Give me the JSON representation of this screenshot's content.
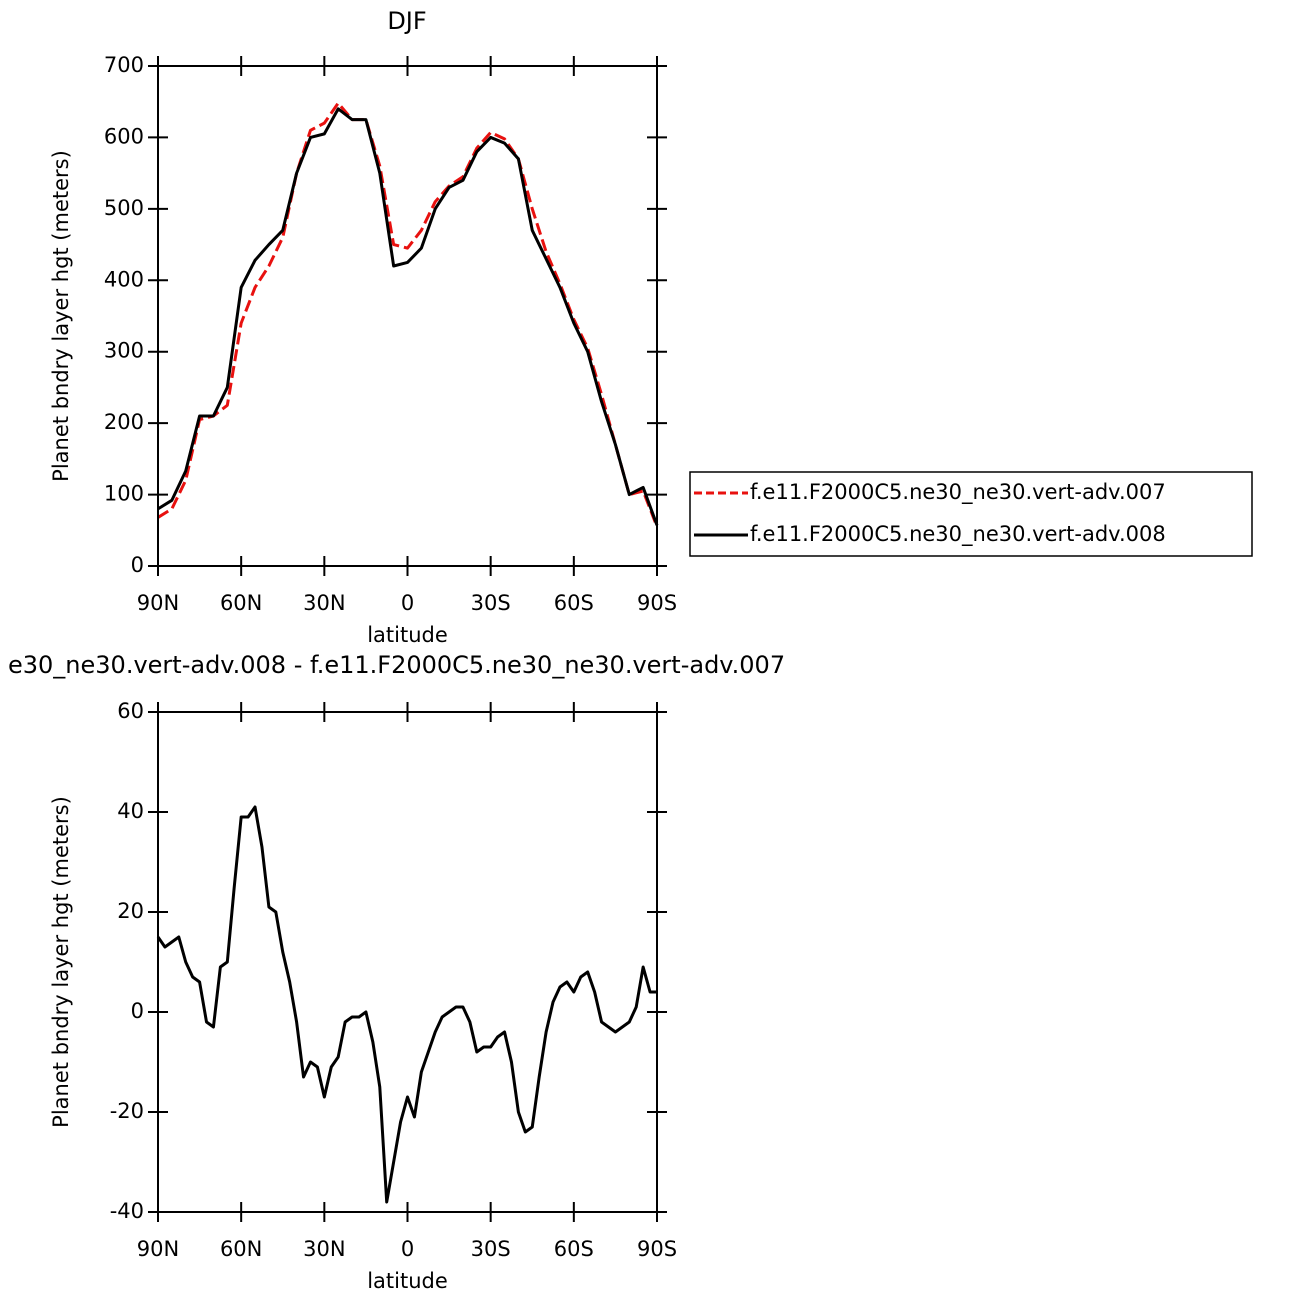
{
  "chart_data": [
    {
      "type": "line",
      "title": "DJF",
      "xlabel": "latitude",
      "ylabel": "Planet bndry layer hgt (meters)",
      "x": [
        90,
        85,
        80,
        75,
        70,
        65,
        60,
        55,
        50,
        45,
        40,
        35,
        30,
        25,
        20,
        15,
        10,
        5,
        0,
        -5,
        -10,
        -15,
        -20,
        -25,
        -30,
        -35,
        -40,
        -45,
        -50,
        -55,
        -60,
        -65,
        -70,
        -75,
        -80,
        -85,
        -90
      ],
      "series": [
        {
          "name": "f.e11.F2000C5.ne30_ne30.vert-adv.007",
          "color": "#e8110f",
          "style": "dashed",
          "values": [
            68,
            80,
            120,
            205,
            210,
            225,
            340,
            390,
            420,
            460,
            550,
            610,
            620,
            648,
            625,
            625,
            560,
            450,
            445,
            470,
            510,
            532,
            545,
            585,
            607,
            598,
            570,
            500,
            440,
            395,
            345,
            305,
            240,
            170,
            100,
            105,
            55
          ]
        },
        {
          "name": "f.e11.F2000C5.ne30_ne30.vert-adv.008",
          "color": "#000000",
          "style": "solid",
          "values": [
            80,
            92,
            133,
            210,
            210,
            250,
            390,
            428,
            450,
            470,
            550,
            600,
            605,
            640,
            625,
            625,
            550,
            420,
            425,
            445,
            500,
            530,
            540,
            580,
            600,
            592,
            570,
            470,
            430,
            390,
            340,
            300,
            230,
            170,
            100,
            110,
            57
          ]
        }
      ],
      "xlim": [
        90,
        -90
      ],
      "xticks": [
        {
          "value": 90,
          "label": "90N"
        },
        {
          "value": 60,
          "label": "60N"
        },
        {
          "value": 30,
          "label": "30N"
        },
        0,
        {
          "value": -30,
          "label": "30S"
        },
        {
          "value": -60,
          "label": "60S"
        },
        {
          "value": -90,
          "label": "90S"
        }
      ],
      "ylim": [
        0,
        700
      ],
      "yticks": [
        0,
        100,
        200,
        300,
        400,
        500,
        600,
        700
      ],
      "legend": "right"
    },
    {
      "type": "line",
      "title": "e30_ne30.vert-adv.008 - f.e11.F2000C5.ne30_ne30.vert-adv.007",
      "xlabel": "latitude",
      "ylabel": "Planet bndry layer hgt (meters)",
      "x": [
        90,
        87.5,
        85,
        82.5,
        80,
        77.5,
        75,
        72.5,
        70,
        67.5,
        65,
        62.5,
        60,
        57.5,
        55,
        52.5,
        50,
        47.5,
        45,
        42.5,
        40,
        37.5,
        35,
        32.5,
        30,
        27.5,
        25,
        22.5,
        20,
        17.5,
        15,
        12.5,
        10,
        7.5,
        5,
        2.5,
        0,
        -2.5,
        -5,
        -7.5,
        -10,
        -12.5,
        -15,
        -17.5,
        -20,
        -22.5,
        -25,
        -27.5,
        -30,
        -32.5,
        -35,
        -37.5,
        -40,
        -42.5,
        -45,
        -47.5,
        -50,
        -52.5,
        -55,
        -57.5,
        -60,
        -62.5,
        -65,
        -67.5,
        -70,
        -72.5,
        -75,
        -77.5,
        -80,
        -82.5,
        -85,
        -87.5,
        -90
      ],
      "values": [
        15,
        13,
        14,
        15,
        10,
        7,
        6,
        -2,
        -3,
        9,
        10,
        25,
        39,
        39,
        41,
        33,
        21,
        20,
        12,
        6,
        -2,
        -13,
        -10,
        -11,
        -17,
        -11,
        -9,
        -2,
        -1,
        -1,
        0,
        -6,
        -15,
        -38,
        -30,
        -22,
        -17,
        -21,
        -12,
        -8,
        -4,
        -1,
        0,
        1,
        1,
        -2,
        -8,
        -7,
        -7,
        -5,
        -4,
        -10,
        -20,
        -24,
        -23,
        -13,
        -4,
        2,
        5,
        6,
        4,
        7,
        8,
        4,
        -2,
        -3,
        -4,
        -3,
        -2,
        1,
        9,
        4,
        4
      ],
      "color": "#000000",
      "xlim": [
        90,
        -90
      ],
      "xticks": [
        {
          "value": 90,
          "label": "90N"
        },
        {
          "value": 60,
          "label": "60N"
        },
        {
          "value": 30,
          "label": "30N"
        },
        0,
        {
          "value": -30,
          "label": "30S"
        },
        {
          "value": -60,
          "label": "60S"
        },
        {
          "value": -90,
          "label": "90S"
        }
      ],
      "ylim": [
        -40,
        60
      ],
      "yticks": [
        -40,
        -20,
        0,
        20,
        40,
        60
      ]
    }
  ]
}
